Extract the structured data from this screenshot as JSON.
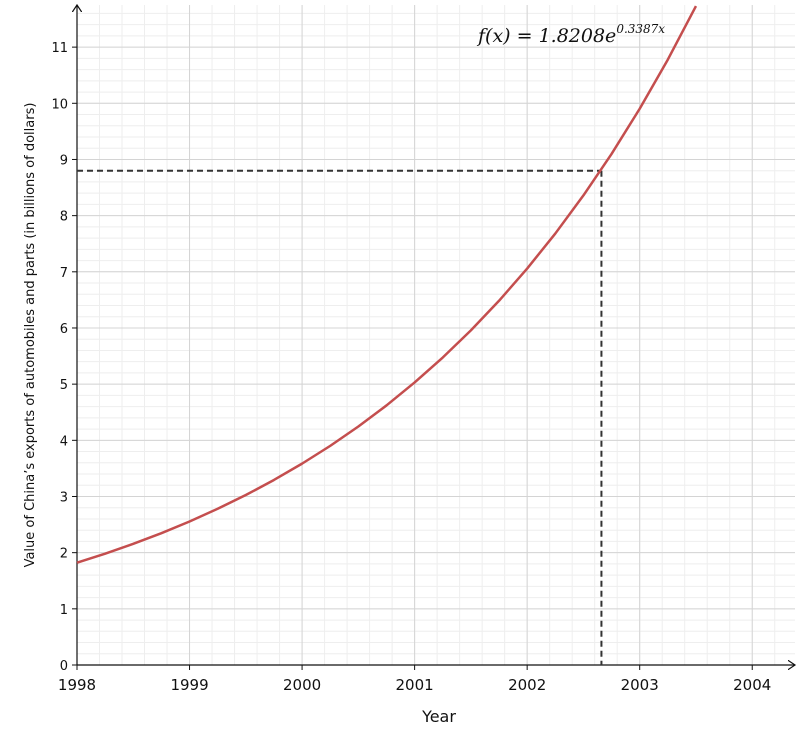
{
  "chart_data": {
    "type": "line",
    "x_label": "Year",
    "y_label": "Value of China’s exports of automobiles and parts (in billions of dollars)",
    "annotation": {
      "base": "f(x) = 1.8208e",
      "exponent": "0.3387x"
    },
    "x": [
      1998,
      1998.25,
      1998.5,
      1998.75,
      1999,
      1999.25,
      1999.5,
      1999.75,
      2000,
      2000.25,
      2000.5,
      2000.75,
      2001,
      2001.25,
      2001.5,
      2001.75,
      2002,
      2002.25,
      2002.5,
      2002.75,
      2003,
      2003.25,
      2003.5
    ],
    "series": [
      {
        "color": "#c44e4e",
        "values": [
          1.821,
          1.982,
          2.157,
          2.347,
          2.555,
          2.781,
          3.026,
          3.294,
          3.585,
          3.901,
          4.246,
          4.621,
          5.03,
          5.474,
          5.958,
          6.484,
          7.058,
          7.681,
          8.36,
          9.099,
          9.903,
          10.778,
          11.731
        ]
      }
    ],
    "reference": {
      "x": 2002.66,
      "y": 8.8,
      "color": "#333333"
    },
    "xlim": [
      1998,
      2004.38
    ],
    "ylim": [
      0,
      11.75
    ],
    "xticks": [
      1998,
      1999,
      2000,
      2001,
      2002,
      2003,
      2004
    ],
    "yticks": [
      0,
      1,
      2,
      3,
      4,
      5,
      6,
      7,
      8,
      9,
      10,
      11
    ],
    "grid": true
  }
}
